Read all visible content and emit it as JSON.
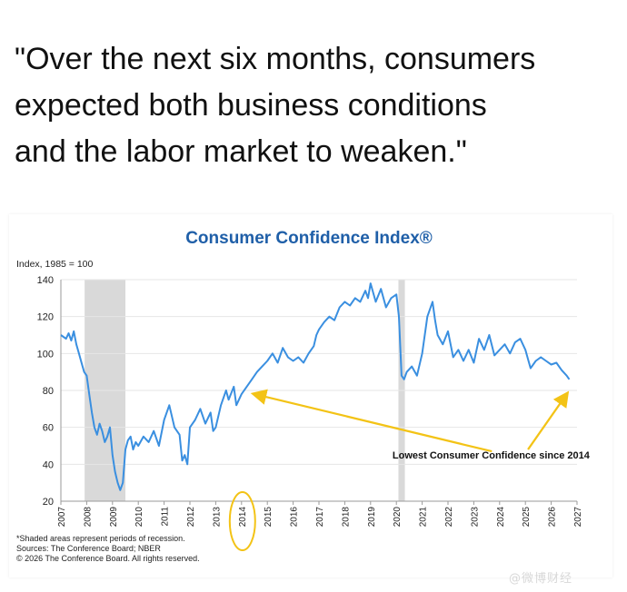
{
  "headline": "\"Over the next six months, consumers\nexpected both business conditions\nand the labor market to weaken.\"",
  "chart_data": {
    "type": "line",
    "title": "Consumer Confidence Index®",
    "ylabel": "Index, 1985 = 100",
    "xlabel": "",
    "ylim": [
      20,
      140
    ],
    "xlim": [
      2007,
      2027
    ],
    "yticks": [
      20,
      40,
      60,
      80,
      100,
      120,
      140
    ],
    "xticks": [
      "2007",
      "2008",
      "2009",
      "2010",
      "2011",
      "2012",
      "2013",
      "2014",
      "2015",
      "2016",
      "2017",
      "2018",
      "2019",
      "2020",
      "2021",
      "2022",
      "2023",
      "2024",
      "2025",
      "2026",
      "2027"
    ],
    "grid": true,
    "recessions": [
      [
        2007.92,
        2009.5
      ],
      [
        2020.08,
        2020.33
      ]
    ],
    "series": [
      {
        "color": "#3a8fe0",
        "x": [
          2007.0,
          2007.1,
          2007.2,
          2007.3,
          2007.4,
          2007.5,
          2007.6,
          2007.7,
          2007.8,
          2007.9,
          2008.0,
          2008.1,
          2008.2,
          2008.3,
          2008.4,
          2008.5,
          2008.6,
          2008.7,
          2008.8,
          2008.9,
          2009.0,
          2009.1,
          2009.2,
          2009.3,
          2009.4,
          2009.5,
          2009.6,
          2009.7,
          2009.8,
          2009.9,
          2010.0,
          2010.2,
          2010.4,
          2010.6,
          2010.8,
          2011.0,
          2011.2,
          2011.4,
          2011.6,
          2011.7,
          2011.8,
          2011.9,
          2012.0,
          2012.2,
          2012.4,
          2012.6,
          2012.8,
          2012.9,
          2013.0,
          2013.2,
          2013.4,
          2013.5,
          2013.7,
          2013.8,
          2014.0,
          2014.2,
          2014.4,
          2014.6,
          2014.8,
          2015.0,
          2015.2,
          2015.4,
          2015.6,
          2015.8,
          2016.0,
          2016.2,
          2016.4,
          2016.6,
          2016.8,
          2016.9,
          2017.0,
          2017.2,
          2017.4,
          2017.6,
          2017.8,
          2018.0,
          2018.2,
          2018.4,
          2018.6,
          2018.8,
          2018.9,
          2019.0,
          2019.2,
          2019.4,
          2019.6,
          2019.8,
          2020.0,
          2020.1,
          2020.2,
          2020.3,
          2020.4,
          2020.6,
          2020.8,
          2021.0,
          2021.2,
          2021.4,
          2021.5,
          2021.6,
          2021.8,
          2022.0,
          2022.2,
          2022.4,
          2022.6,
          2022.8,
          2023.0,
          2023.2,
          2023.4,
          2023.6,
          2023.8,
          2024.0,
          2024.2,
          2024.4,
          2024.6,
          2024.8,
          2025.0,
          2025.1,
          2025.2,
          2025.4,
          2025.6,
          2025.8,
          2026.0,
          2026.2,
          2026.4,
          2026.6,
          2026.7
        ],
        "y": [
          110,
          109,
          108,
          111,
          107,
          112,
          105,
          100,
          95,
          90,
          88,
          78,
          68,
          60,
          56,
          62,
          58,
          52,
          55,
          60,
          45,
          36,
          30,
          26,
          30,
          48,
          53,
          55,
          48,
          52,
          50,
          55,
          52,
          58,
          50,
          64,
          72,
          60,
          56,
          42,
          45,
          40,
          60,
          64,
          70,
          62,
          68,
          58,
          60,
          72,
          80,
          75,
          82,
          72,
          78,
          82,
          86,
          90,
          93,
          96,
          100,
          95,
          103,
          98,
          96,
          98,
          95,
          100,
          104,
          110,
          113,
          117,
          120,
          118,
          125,
          128,
          126,
          130,
          128,
          134,
          130,
          138,
          128,
          135,
          125,
          130,
          132,
          120,
          88,
          86,
          90,
          93,
          88,
          100,
          120,
          128,
          118,
          110,
          105,
          112,
          98,
          102,
          96,
          102,
          95,
          108,
          102,
          110,
          99,
          102,
          105,
          100,
          106,
          108,
          102,
          97,
          92,
          96,
          98,
          96,
          94,
          95,
          91,
          88,
          86
        ]
      }
    ],
    "annotations": [
      {
        "text": "Lowest Consumer Confidence since 2014",
        "x": 2020.2,
        "y": 45
      }
    ],
    "footnotes": [
      "*Shaded areas represent periods of recession.",
      "Sources: The Conference Board; NBER",
      "© 2026 The Conference Board. All rights reserved."
    ]
  },
  "watermark": "@微博财经"
}
